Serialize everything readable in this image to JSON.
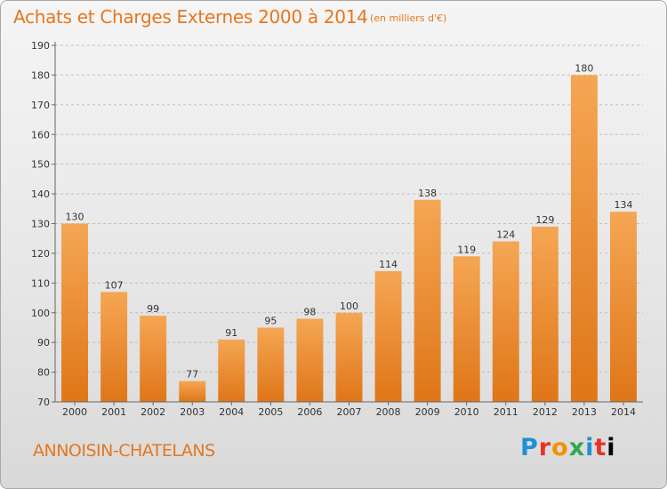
{
  "header": {
    "title": "Achats et Charges Externes 2000 à 2014",
    "subtitle": "(en milliers d'€)"
  },
  "footer": {
    "commune": "ANNOISIN-CHATELANS",
    "logo_letters": [
      "P",
      "r",
      "o",
      "x",
      "i",
      "t",
      "i"
    ]
  },
  "colors": {
    "bar_top": "#F5A654",
    "bar_bottom": "#DF7618",
    "accent": "#E5771E",
    "grid": "#bdbdbd",
    "axis_text": "#333333"
  },
  "chart_data": {
    "type": "bar",
    "title": "Achats et Charges Externes 2000 à 2014",
    "subtitle": "(en milliers d'€)",
    "categories": [
      "2000",
      "2001",
      "2002",
      "2003",
      "2004",
      "2005",
      "2006",
      "2007",
      "2008",
      "2009",
      "2010",
      "2011",
      "2012",
      "2013",
      "2014"
    ],
    "values": [
      130,
      107,
      99,
      77,
      91,
      95,
      98,
      100,
      114,
      138,
      119,
      124,
      129,
      180,
      134
    ],
    "ylim": [
      70,
      190
    ],
    "yticks": [
      70,
      80,
      90,
      100,
      110,
      120,
      130,
      140,
      150,
      160,
      170,
      180,
      190
    ],
    "grid": true,
    "data_labels": true
  }
}
